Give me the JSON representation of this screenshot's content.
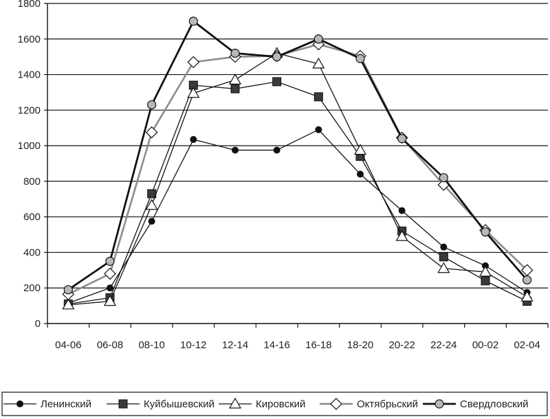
{
  "chart_data": {
    "type": "line",
    "categories": [
      "04-06",
      "06-08",
      "08-10",
      "10-12",
      "12-14",
      "14-16",
      "16-18",
      "18-20",
      "20-22",
      "22-24",
      "00-02",
      "02-04"
    ],
    "ylim": [
      0,
      1800
    ],
    "yticks": [
      0,
      200,
      400,
      600,
      800,
      1000,
      1200,
      1400,
      1600,
      1800
    ],
    "grid": true,
    "legend_position": "bottom",
    "series": [
      {
        "name": "Ленинский",
        "marker": "dot",
        "color": "#111111",
        "values": [
          115,
          200,
          575,
          1035,
          975,
          975,
          1090,
          840,
          635,
          430,
          325,
          175
        ]
      },
      {
        "name": "Куйбышевский",
        "marker": "square",
        "color": "#111111",
        "values": [
          110,
          145,
          730,
          1340,
          1320,
          1360,
          1275,
          940,
          520,
          375,
          240,
          125
        ]
      },
      {
        "name": "Кировский",
        "marker": "triangle",
        "color": "#111111",
        "values": [
          105,
          125,
          665,
          1295,
          1370,
          1520,
          1460,
          975,
          490,
          310,
          290,
          150
        ]
      },
      {
        "name": "Октябрьский",
        "marker": "diamond",
        "color": "#8c8c8c",
        "values": [
          165,
          280,
          1075,
          1470,
          1500,
          1505,
          1570,
          1505,
          1045,
          780,
          525,
          300
        ]
      },
      {
        "name": "Свердловский",
        "marker": "circle",
        "color": "#111111",
        "values": [
          190,
          350,
          1230,
          1700,
          1520,
          1500,
          1600,
          1490,
          1040,
          820,
          515,
          245
        ]
      }
    ]
  }
}
